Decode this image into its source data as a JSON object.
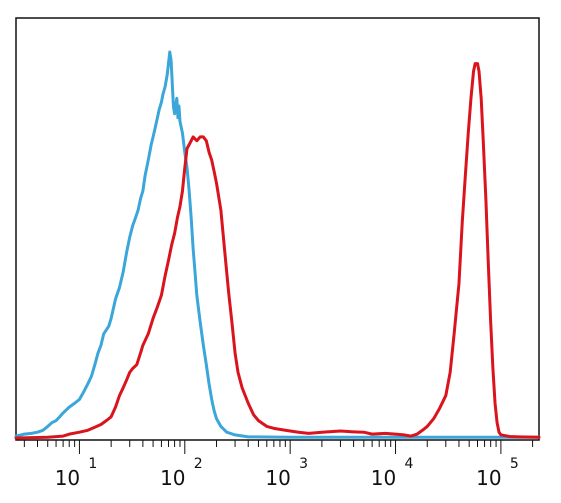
{
  "chart_data": {
    "type": "line",
    "title": "",
    "xlabel": "",
    "ylabel": "",
    "x_scale": "log",
    "xlim": [
      2.5,
      230000
    ],
    "ylim": [
      0,
      100
    ],
    "y_ticks_visible": false,
    "grid": false,
    "legend": "none",
    "x_ticks": [
      {
        "base": "10",
        "exp": "1",
        "value": 10
      },
      {
        "base": "10",
        "exp": "2",
        "value": 100
      },
      {
        "base": "10",
        "exp": "3",
        "value": 1000
      },
      {
        "base": "10",
        "exp": "4",
        "value": 10000
      },
      {
        "base": "10",
        "exp": "5",
        "value": 100000
      }
    ],
    "series": [
      {
        "color": "#3ba6d9",
        "points": [
          [
            2.5,
            0.5
          ],
          [
            3.0,
            1.0
          ],
          [
            3.5,
            1.2
          ],
          [
            4.0,
            1.5
          ],
          [
            4.5,
            2.0
          ],
          [
            5.0,
            3.0
          ],
          [
            5.5,
            4.0
          ],
          [
            6.0,
            4.5
          ],
          [
            6.5,
            5.5
          ],
          [
            7.0,
            6.5
          ],
          [
            8.0,
            8.0
          ],
          [
            9.0,
            9.0
          ],
          [
            10,
            10
          ],
          [
            11,
            12
          ],
          [
            12,
            14
          ],
          [
            13,
            16
          ],
          [
            14,
            19
          ],
          [
            15,
            22
          ],
          [
            16,
            24
          ],
          [
            17,
            27
          ],
          [
            18,
            28
          ],
          [
            19,
            29
          ],
          [
            20,
            31
          ],
          [
            22,
            36
          ],
          [
            24,
            39
          ],
          [
            26,
            43
          ],
          [
            28,
            48
          ],
          [
            30,
            52
          ],
          [
            32,
            55
          ],
          [
            34,
            57
          ],
          [
            36,
            59
          ],
          [
            38,
            62
          ],
          [
            40,
            64
          ],
          [
            42,
            68
          ],
          [
            45,
            72
          ],
          [
            48,
            76
          ],
          [
            50,
            78
          ],
          [
            52,
            80
          ],
          [
            55,
            83
          ],
          [
            57,
            85
          ],
          [
            60,
            87
          ],
          [
            62,
            89
          ],
          [
            65,
            91
          ],
          [
            68,
            94
          ],
          [
            70,
            97
          ],
          [
            72,
            100
          ],
          [
            74,
            98
          ],
          [
            76,
            92
          ],
          [
            78,
            86
          ],
          [
            80,
            84
          ],
          [
            84,
            88
          ],
          [
            86,
            83
          ],
          [
            88,
            86
          ],
          [
            90,
            82
          ],
          [
            95,
            79
          ],
          [
            100,
            74
          ],
          [
            105,
            70
          ],
          [
            110,
            64
          ],
          [
            115,
            57
          ],
          [
            120,
            49
          ],
          [
            125,
            43
          ],
          [
            130,
            37
          ],
          [
            140,
            30
          ],
          [
            150,
            24
          ],
          [
            160,
            19
          ],
          [
            170,
            14
          ],
          [
            180,
            10
          ],
          [
            190,
            7
          ],
          [
            200,
            5
          ],
          [
            220,
            3
          ],
          [
            250,
            1.5
          ],
          [
            300,
            0.8
          ],
          [
            400,
            0.3
          ],
          [
            1000,
            0.2
          ],
          [
            10000,
            0.2
          ],
          [
            100000,
            0.2
          ],
          [
            230000,
            0.2
          ]
        ]
      },
      {
        "color": "#d9141c",
        "points": [
          [
            2.5,
            0.0
          ],
          [
            5.0,
            0.2
          ],
          [
            7.0,
            0.5
          ],
          [
            8.0,
            1.0
          ],
          [
            10,
            1.5
          ],
          [
            12,
            2.0
          ],
          [
            14,
            2.8
          ],
          [
            16,
            3.5
          ],
          [
            18,
            4.5
          ],
          [
            20,
            5.5
          ],
          [
            22,
            8.0
          ],
          [
            24,
            11
          ],
          [
            26,
            13
          ],
          [
            28,
            15
          ],
          [
            30,
            17
          ],
          [
            32,
            18
          ],
          [
            35,
            19
          ],
          [
            38,
            22
          ],
          [
            40,
            24
          ],
          [
            45,
            27
          ],
          [
            50,
            31
          ],
          [
            55,
            34
          ],
          [
            60,
            37
          ],
          [
            65,
            42
          ],
          [
            70,
            46
          ],
          [
            75,
            50
          ],
          [
            80,
            53
          ],
          [
            85,
            57
          ],
          [
            90,
            60
          ],
          [
            95,
            64
          ],
          [
            100,
            70
          ],
          [
            105,
            75
          ],
          [
            110,
            76
          ],
          [
            120,
            78
          ],
          [
            130,
            77
          ],
          [
            140,
            78
          ],
          [
            150,
            78
          ],
          [
            160,
            77
          ],
          [
            170,
            74
          ],
          [
            180,
            72
          ],
          [
            190,
            69
          ],
          [
            200,
            66
          ],
          [
            220,
            59
          ],
          [
            240,
            48
          ],
          [
            260,
            38
          ],
          [
            280,
            30
          ],
          [
            300,
            22
          ],
          [
            320,
            17
          ],
          [
            350,
            13
          ],
          [
            400,
            9
          ],
          [
            450,
            6
          ],
          [
            500,
            4.5
          ],
          [
            600,
            3
          ],
          [
            700,
            2.5
          ],
          [
            900,
            2
          ],
          [
            1200,
            1.5
          ],
          [
            1500,
            1.2
          ],
          [
            2000,
            1.5
          ],
          [
            3000,
            1.8
          ],
          [
            4000,
            1.6
          ],
          [
            5000,
            1.5
          ],
          [
            6000,
            1.0
          ],
          [
            8000,
            1.2
          ],
          [
            10000,
            1.0
          ],
          [
            12000,
            0.8
          ],
          [
            14000,
            0.5
          ],
          [
            16000,
            1.0
          ],
          [
            18000,
            2.0
          ],
          [
            20000,
            3.0
          ],
          [
            23000,
            5.0
          ],
          [
            26000,
            7.5
          ],
          [
            30000,
            11
          ],
          [
            33000,
            17
          ],
          [
            36000,
            27
          ],
          [
            40000,
            40
          ],
          [
            43000,
            56
          ],
          [
            46000,
            68
          ],
          [
            49000,
            79
          ],
          [
            52000,
            88
          ],
          [
            55000,
            95
          ],
          [
            57000,
            97
          ],
          [
            60000,
            97
          ],
          [
            62000,
            95
          ],
          [
            65000,
            88
          ],
          [
            68000,
            77
          ],
          [
            72000,
            62
          ],
          [
            76000,
            45
          ],
          [
            80000,
            30
          ],
          [
            84000,
            18
          ],
          [
            88000,
            9
          ],
          [
            92000,
            4
          ],
          [
            96000,
            1.5
          ],
          [
            100000,
            0.8
          ],
          [
            120000,
            0.4
          ],
          [
            150000,
            0.3
          ],
          [
            230000,
            0.2
          ]
        ]
      }
    ]
  }
}
